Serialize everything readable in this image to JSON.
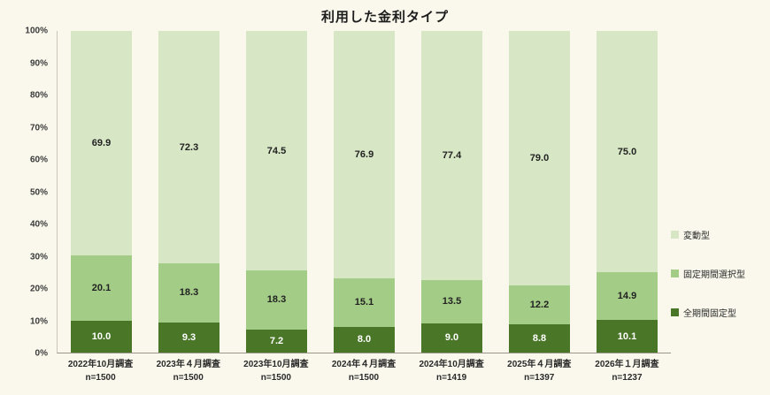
{
  "title": "利用した金利タイプ",
  "chart_data": {
    "type": "bar",
    "variant": "100%-stacked-column",
    "title": "利用した金利タイプ",
    "categories": [
      "2022年10月調査",
      "2023年４月調査",
      "2023年10月調査",
      "2024年４月調査",
      "2024年10月調査",
      "2025年４月調査",
      "2026年１月調査"
    ],
    "sample_sizes": [
      "n=1500",
      "n=1500",
      "n=1500",
      "n=1500",
      "n=1419",
      "n=1397",
      "n=1237"
    ],
    "series": [
      {
        "name": "変動型",
        "color": "#d7e7c5",
        "text_color": "#222222",
        "values": [
          69.9,
          72.3,
          74.5,
          76.9,
          77.4,
          79.0,
          75.0
        ]
      },
      {
        "name": "固定期間選択型",
        "color": "#a3cc86",
        "text_color": "#222222",
        "values": [
          20.1,
          18.3,
          18.3,
          15.1,
          13.5,
          12.2,
          14.9
        ]
      },
      {
        "name": "全期間固定型",
        "color": "#4a7628",
        "text_color": "#ffffff",
        "values": [
          10.0,
          9.3,
          7.2,
          8.0,
          9.0,
          8.8,
          10.1
        ]
      }
    ],
    "ylim": [
      0,
      100
    ],
    "yticks": [
      "100%",
      "90%",
      "80%",
      "70%",
      "60%",
      "50%",
      "40%",
      "30%",
      "20%",
      "10%",
      "0%"
    ],
    "grid": false,
    "legend_position": "right"
  },
  "colors": {
    "background": "#faf8ec",
    "axis": "#9a978a",
    "title": "#1c1c1c"
  }
}
